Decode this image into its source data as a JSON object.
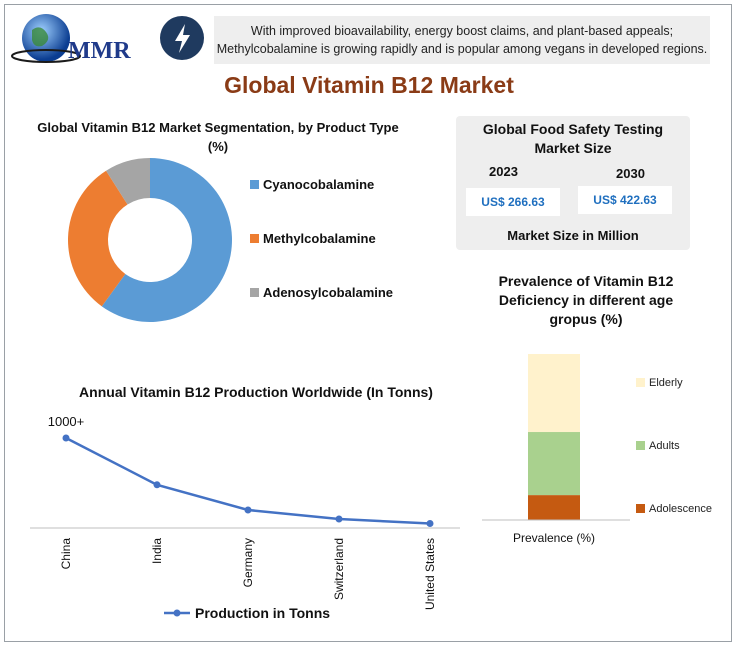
{
  "header": {
    "logo_text": "MMR",
    "banner_line1": "With improved bioavailability, energy boost claims, and plant-based appeals;",
    "banner_line2": "Methylcobalamine is growing rapidly and is popular among vegans in developed regions."
  },
  "page_title": "Global Vitamin B12 Market",
  "colors": {
    "title": "#8a3b16",
    "accent_blue": "#1f6fbf",
    "cyano": "#5b9bd5",
    "methyl": "#ed7d31",
    "adeno": "#a5a5a5",
    "line": "#4472c4",
    "elderly": "#fff2cc",
    "adults": "#a9d18e",
    "adolescence": "#c55a11"
  },
  "food_safety": {
    "title_line1": "Global Food Safety Testing",
    "title_line2": "Market Size",
    "year_a": "2023",
    "value_a": "US$ 266.63",
    "year_b": "2030",
    "value_b": "US$ 422.63",
    "footer": "Market Size in Million"
  },
  "chart_data": [
    {
      "type": "pie",
      "title_line1": "Global Vitamin B12 Market Segmentation, by Product Type",
      "title_line2": "(%)",
      "categories": [
        "Cyanocobalamine",
        "Methylcobalamine",
        "Adenosylcobalamine"
      ],
      "values": [
        60,
        31,
        9
      ],
      "legend": "right"
    },
    {
      "type": "line",
      "title": "Annual Vitamin B12 Production Worldwide (In Tonns)",
      "categories": [
        "China",
        "India",
        "Germany",
        "Switzerland",
        "United States"
      ],
      "series": [
        {
          "name": "Production in Tonns",
          "values": [
            1000,
            480,
            200,
            100,
            50
          ]
        }
      ],
      "data_labels": [
        "1000+"
      ],
      "ylim": [
        0,
        1200
      ],
      "legend": "bottom"
    },
    {
      "type": "bar",
      "title_line1": "Prevalence of Vitamin B12",
      "title_line2": "Deficiency in different age",
      "title_line3": "gropus (%)",
      "xlabel": "Prevalence (%)",
      "categories": [
        "Prevalence (%)"
      ],
      "series": [
        {
          "name": "Adolescence",
          "values": [
            15
          ]
        },
        {
          "name": "Adults",
          "values": [
            38
          ]
        },
        {
          "name": "Elderly",
          "values": [
            47
          ]
        }
      ],
      "stacked": true,
      "legend": "right"
    }
  ]
}
